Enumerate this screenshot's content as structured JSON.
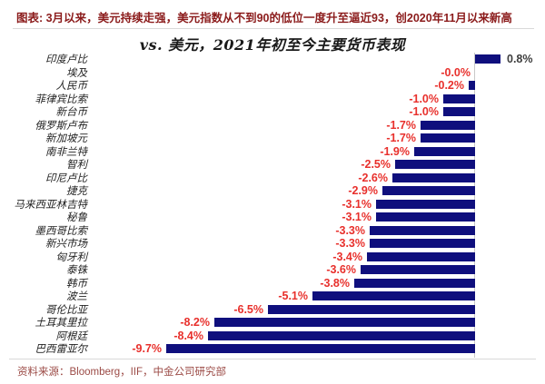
{
  "header": {
    "note": "图表: 3月以来，美元持续走强，美元指数从不到90的低位一度升至逼近93，创2020年11月以来新高"
  },
  "chart_data": {
    "type": "bar",
    "orientation": "horizontal",
    "title": "vs. 美元，2021年初至今主要货币表现",
    "categories": [
      "印度卢比",
      "埃及",
      "人民币",
      "菲律宾比索",
      "新台币",
      "俄罗斯卢布",
      "新加坡元",
      "南非兰特",
      "智利",
      "印尼卢比",
      "捷克",
      "马来西亚林吉特",
      "秘鲁",
      "墨西哥比索",
      "新兴市场",
      "匈牙利",
      "泰铢",
      "韩币",
      "波兰",
      "哥伦比亚",
      "土耳其里拉",
      "阿根廷",
      "巴西雷亚尔"
    ],
    "values": [
      0.8,
      -0.0,
      -0.2,
      -1.0,
      -1.0,
      -1.7,
      -1.7,
      -1.9,
      -2.5,
      -2.6,
      -2.9,
      -3.1,
      -3.1,
      -3.3,
      -3.3,
      -3.4,
      -3.6,
      -3.8,
      -5.1,
      -6.5,
      -8.2,
      -8.4,
      -9.7
    ],
    "value_labels": [
      "0.8%",
      "-0.0%",
      "-0.2%",
      "-1.0%",
      "-1.0%",
      "-1.7%",
      "-1.7%",
      "-1.9%",
      "-2.5%",
      "-2.6%",
      "-2.9%",
      "-3.1%",
      "-3.1%",
      "-3.3%",
      "-3.3%",
      "-3.4%",
      "-3.6%",
      "-3.8%",
      "-5.1%",
      "-6.5%",
      "-8.2%",
      "-8.4%",
      "-9.7%"
    ],
    "unit": "%",
    "xlim": [
      -10.5,
      1.2
    ],
    "grid": false,
    "legend": false,
    "bar_color": "#0f0f7d",
    "negative_label_color": "#e8302c",
    "positive_label_color": "#3d3d3d"
  },
  "footer": {
    "source": "资料来源：Bloomberg，IIF，中金公司研究部"
  }
}
